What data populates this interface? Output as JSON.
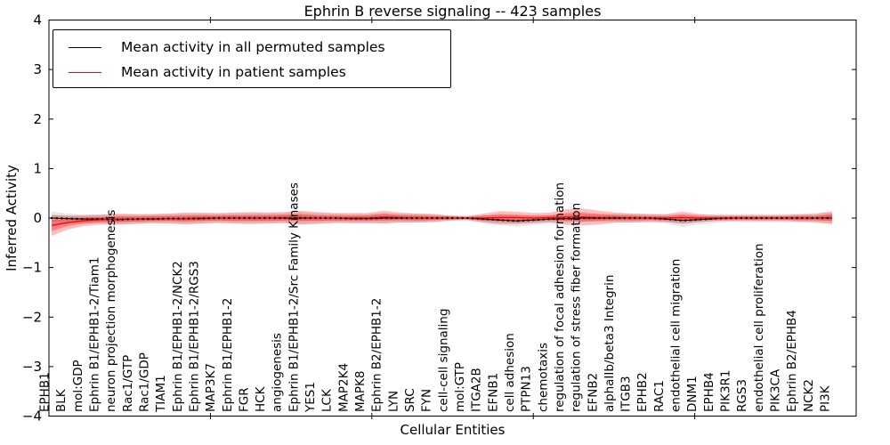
{
  "figure": {
    "title": "Ephrin B reverse signaling -- 423 samples",
    "xlabel": "Cellular Entities",
    "ylabel": "Inferred Activity"
  },
  "colors": {
    "permuted_line": "#000000",
    "patient_line": "#ff0000",
    "permuted_band": "#c8c8c8",
    "patient_band": "#ff0000",
    "axes": "#000000",
    "background": "#ffffff"
  },
  "chart_data": {
    "type": "line",
    "title": "Ephrin B reverse signaling -- 423 samples",
    "xlabel": "Cellular Entities",
    "ylabel": "Inferred Activity",
    "ylim": [
      -4,
      4
    ],
    "yticks": [
      -4,
      -3,
      -2,
      -1,
      0,
      1,
      2,
      3,
      4
    ],
    "grid": false,
    "legend_position": "upper left",
    "categories": [
      "EPHB1",
      "BLK",
      "mol:GDP",
      "Ephrin B1/EPHB1-2/Tiam1",
      "neuron projection morphogenesis",
      "Rac1/GTP",
      "Rac1/GDP",
      "TIAM1",
      "Ephrin B1/EPHB1-2/NCK2",
      "Ephrin B1/EPHB1-2/RGS3",
      "MAP3K7",
      "Ephrin B1/EPHB1-2",
      "FGR",
      "HCK",
      "angiogenesis",
      "Ephrin B1/EPHB1-2/Src Family Kinases",
      "YES1",
      "LCK",
      "MAP2K4",
      "MAPK8",
      "Ephrin B2/EPHB1-2",
      "LYN",
      "SRC",
      "FYN",
      "cell-cell signaling",
      "mol:GTP",
      "ITGA2B",
      "EFNB1",
      "cell adhesion",
      "PTPN13",
      "chemotaxis",
      "regulation of focal adhesion formation",
      "regulation of stress fiber formation",
      "EFNB2",
      "alphaIIb/beta3 Integrin",
      "ITGB3",
      "EPHB2",
      "RAC1",
      "endothelial cell migration",
      "DNM1",
      "EPHB4",
      "PIK3R1",
      "RGS3",
      "endothelial cell proliferation",
      "PIK3CA",
      "Ephrin B2/EPHB4",
      "NCK2",
      "PI3K"
    ],
    "series": [
      {
        "name": "Mean activity in all permuted samples",
        "color": "#000000",
        "style": "dotted",
        "values": [
          0.0,
          -0.01,
          -0.02,
          -0.02,
          -0.03,
          -0.02,
          -0.02,
          -0.01,
          -0.01,
          -0.01,
          0.0,
          0.0,
          0.0,
          0.0,
          0.0,
          0.0,
          0.0,
          0.0,
          -0.01,
          -0.01,
          0.0,
          0.0,
          0.0,
          0.0,
          0.0,
          0.0,
          -0.02,
          -0.04,
          -0.06,
          -0.04,
          -0.02,
          -0.01,
          0.0,
          0.0,
          0.0,
          0.0,
          0.0,
          -0.02,
          -0.05,
          -0.03,
          -0.01,
          0.0,
          0.0,
          0.0,
          0.0,
          0.0,
          0.0,
          0.0
        ]
      },
      {
        "name": "Mean activity in patient samples",
        "color": "#ff0000",
        "style": "solid",
        "values": [
          -0.15,
          -0.09,
          -0.05,
          -0.03,
          -0.02,
          -0.02,
          -0.01,
          -0.01,
          -0.01,
          0.0,
          0.0,
          0.0,
          0.0,
          0.0,
          0.01,
          0.01,
          0.0,
          0.0,
          0.0,
          0.0,
          0.02,
          0.01,
          0.0,
          0.0,
          0.0,
          0.0,
          0.0,
          0.01,
          0.01,
          0.0,
          0.01,
          0.02,
          0.02,
          0.01,
          0.01,
          0.0,
          0.0,
          0.0,
          0.01,
          0.0,
          0.0,
          0.0,
          0.0,
          0.0,
          0.0,
          0.0,
          0.0,
          0.01
        ]
      }
    ],
    "bands": [
      {
        "name": "permuted-std-outer",
        "series": 0,
        "color": "#c8c8c8",
        "opacity": 0.45,
        "halfwidths": [
          0.13,
          0.1,
          0.09,
          0.09,
          0.1,
          0.09,
          0.09,
          0.09,
          0.1,
          0.1,
          0.09,
          0.1,
          0.1,
          0.1,
          0.1,
          0.12,
          0.1,
          0.09,
          0.09,
          0.09,
          0.1,
          0.09,
          0.09,
          0.08,
          0.05,
          0.04,
          0.08,
          0.1,
          0.11,
          0.1,
          0.08,
          0.08,
          0.08,
          0.08,
          0.09,
          0.09,
          0.08,
          0.09,
          0.13,
          0.1,
          0.09,
          0.08,
          0.08,
          0.08,
          0.08,
          0.09,
          0.1,
          0.11
        ]
      },
      {
        "name": "permuted-std-inner",
        "series": 0,
        "color": "#bbbbbb",
        "opacity": 0.55,
        "halfwidths": [
          0.07,
          0.05,
          0.05,
          0.05,
          0.05,
          0.05,
          0.05,
          0.05,
          0.05,
          0.05,
          0.05,
          0.05,
          0.05,
          0.05,
          0.05,
          0.06,
          0.05,
          0.05,
          0.05,
          0.05,
          0.05,
          0.05,
          0.05,
          0.04,
          0.03,
          0.02,
          0.04,
          0.05,
          0.06,
          0.05,
          0.04,
          0.04,
          0.04,
          0.04,
          0.05,
          0.05,
          0.04,
          0.05,
          0.07,
          0.05,
          0.05,
          0.04,
          0.04,
          0.04,
          0.04,
          0.05,
          0.05,
          0.06
        ]
      },
      {
        "name": "patient-std-outer",
        "series": 1,
        "color": "#ff0000",
        "opacity": 0.25,
        "halfwidths": [
          0.21,
          0.14,
          0.11,
          0.1,
          0.11,
          0.1,
          0.09,
          0.1,
          0.12,
          0.11,
          0.1,
          0.11,
          0.12,
          0.11,
          0.11,
          0.14,
          0.12,
          0.1,
          0.1,
          0.1,
          0.13,
          0.1,
          0.09,
          0.08,
          0.05,
          0.04,
          0.09,
          0.13,
          0.12,
          0.1,
          0.1,
          0.16,
          0.17,
          0.14,
          0.1,
          0.09,
          0.08,
          0.08,
          0.12,
          0.08,
          0.06,
          0.06,
          0.06,
          0.06,
          0.06,
          0.07,
          0.08,
          0.13
        ]
      },
      {
        "name": "patient-std-inner",
        "series": 1,
        "color": "#ff0000",
        "opacity": 0.32,
        "halfwidths": [
          0.11,
          0.07,
          0.06,
          0.05,
          0.06,
          0.05,
          0.05,
          0.05,
          0.06,
          0.06,
          0.05,
          0.06,
          0.06,
          0.06,
          0.06,
          0.07,
          0.06,
          0.05,
          0.05,
          0.05,
          0.07,
          0.05,
          0.05,
          0.04,
          0.03,
          0.02,
          0.05,
          0.07,
          0.06,
          0.05,
          0.05,
          0.08,
          0.09,
          0.07,
          0.05,
          0.05,
          0.04,
          0.04,
          0.06,
          0.04,
          0.03,
          0.03,
          0.03,
          0.03,
          0.03,
          0.04,
          0.04,
          0.07
        ]
      }
    ]
  },
  "legend": {
    "entries": [
      {
        "label": "Mean activity in all permuted samples",
        "color": "#000000"
      },
      {
        "label": "Mean activity in patient samples",
        "color": "#ff0000"
      }
    ]
  }
}
